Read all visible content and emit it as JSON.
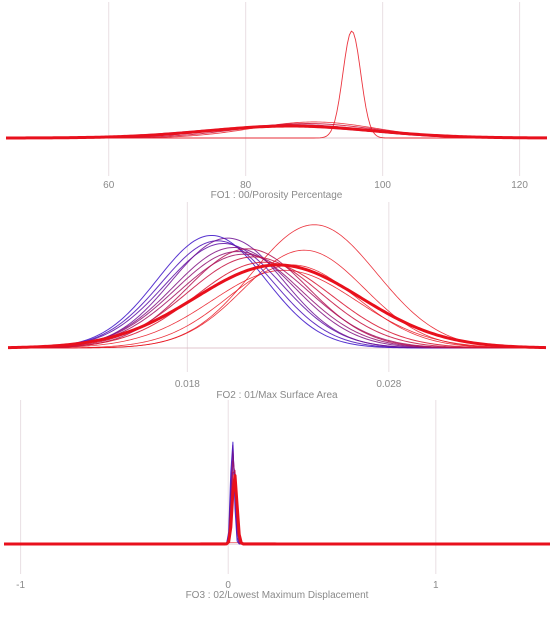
{
  "colors": {
    "gridline": "#e9dfe3",
    "baseline": "#d9b3bd",
    "series_blue": "#3a10c8",
    "series_red": "#e8101c"
  },
  "chart_data": [
    {
      "type": "area",
      "xlabel": "FO1 : 00/Porosity Percentage",
      "ticks": [
        60,
        80,
        100,
        120
      ],
      "xlim": [
        45,
        124
      ],
      "ymax": 1.0,
      "grid": true,
      "curves": [
        {
          "mu": 86.5,
          "sigma": 11.0,
          "h": 0.115,
          "c": 0.0,
          "w": 1.0
        },
        {
          "mu": 86.0,
          "sigma": 11.5,
          "h": 0.112,
          "c": 0.15,
          "w": 1.0
        },
        {
          "mu": 85.5,
          "sigma": 12.0,
          "h": 0.11,
          "c": 0.3,
          "w": 1.0
        },
        {
          "mu": 86.5,
          "sigma": 10.5,
          "h": 0.118,
          "c": 0.45,
          "w": 1.0
        },
        {
          "mu": 85.0,
          "sigma": 12.5,
          "h": 0.108,
          "c": 0.55,
          "w": 1.0
        },
        {
          "mu": 87.0,
          "sigma": 11.0,
          "h": 0.125,
          "c": 0.65,
          "w": 1.0
        },
        {
          "mu": 89.0,
          "sigma": 10.0,
          "h": 0.135,
          "c": 0.85,
          "w": 1.0
        },
        {
          "mu": 90.0,
          "sigma": 9.0,
          "h": 0.15,
          "c": 1.0,
          "w": 0.8
        },
        {
          "mu": 95.5,
          "sigma": 1.3,
          "h": 1.0,
          "c": 1.0,
          "w": 0.9
        },
        {
          "mu": 86.5,
          "sigma": 12.0,
          "h": 0.112,
          "c": 1.0,
          "w": 3.0
        }
      ]
    },
    {
      "type": "area",
      "xlabel": "FO2 : 01/Max Surface Area",
      "ticks": [
        0.018,
        0.028
      ],
      "xlim": [
        0.0091,
        0.0358
      ],
      "ymax": 1.0,
      "grid": true,
      "curves": [
        {
          "mu": 0.0192,
          "sigma": 0.0027,
          "h": 0.84,
          "c": 0.0,
          "w": 1.0
        },
        {
          "mu": 0.0195,
          "sigma": 0.0028,
          "h": 0.8,
          "c": 0.1,
          "w": 1.0
        },
        {
          "mu": 0.0198,
          "sigma": 0.0029,
          "h": 0.78,
          "c": 0.2,
          "w": 1.0
        },
        {
          "mu": 0.02,
          "sigma": 0.0028,
          "h": 0.82,
          "c": 0.3,
          "w": 1.0
        },
        {
          "mu": 0.0203,
          "sigma": 0.003,
          "h": 0.75,
          "c": 0.4,
          "w": 1.0
        },
        {
          "mu": 0.0205,
          "sigma": 0.0031,
          "h": 0.72,
          "c": 0.5,
          "w": 1.0
        },
        {
          "mu": 0.0208,
          "sigma": 0.0032,
          "h": 0.7,
          "c": 0.6,
          "w": 1.0
        },
        {
          "mu": 0.021,
          "sigma": 0.003,
          "h": 0.74,
          "c": 0.7,
          "w": 1.0
        },
        {
          "mu": 0.0213,
          "sigma": 0.0033,
          "h": 0.68,
          "c": 0.8,
          "w": 1.0
        },
        {
          "mu": 0.0218,
          "sigma": 0.0034,
          "h": 0.64,
          "c": 0.9,
          "w": 1.0
        },
        {
          "mu": 0.0243,
          "sigma": 0.0031,
          "h": 0.92,
          "c": 1.0,
          "w": 0.8
        },
        {
          "mu": 0.0238,
          "sigma": 0.003,
          "h": 0.73,
          "c": 1.0,
          "w": 0.8
        },
        {
          "mu": 0.0232,
          "sigma": 0.0032,
          "h": 0.62,
          "c": 1.0,
          "w": 0.8
        },
        {
          "mu": 0.0228,
          "sigma": 0.0036,
          "h": 0.58,
          "c": 1.0,
          "w": 0.8
        },
        {
          "mu": 0.0225,
          "sigma": 0.0041,
          "h": 0.62,
          "c": 1.0,
          "w": 3.0
        }
      ]
    },
    {
      "type": "area",
      "xlabel": "FO3 : 02/Lowest Maximum Displacement",
      "ticks": [
        -1,
        0,
        1
      ],
      "xlim": [
        -1.08,
        1.55
      ],
      "ymax": 1.0,
      "grid": true,
      "curves": [
        {
          "mu": 0.02,
          "sigma": 0.0085,
          "h": 0.97,
          "c": 0.0,
          "w": 1.0
        },
        {
          "mu": 0.022,
          "sigma": 0.009,
          "h": 0.9,
          "c": 0.15,
          "w": 1.0
        },
        {
          "mu": 0.024,
          "sigma": 0.0095,
          "h": 0.85,
          "c": 0.35,
          "w": 1.0
        },
        {
          "mu": 0.026,
          "sigma": 0.01,
          "h": 0.8,
          "c": 0.55,
          "w": 1.0
        },
        {
          "mu": 0.028,
          "sigma": 0.0105,
          "h": 0.74,
          "c": 0.75,
          "w": 1.0
        },
        {
          "mu": 0.031,
          "sigma": 0.011,
          "h": 0.63,
          "c": 1.0,
          "w": 3.0
        },
        {
          "mu": 0.05,
          "sigma": 0.45,
          "h": 0.012,
          "c": 1.0,
          "w": 0.7
        }
      ]
    }
  ]
}
